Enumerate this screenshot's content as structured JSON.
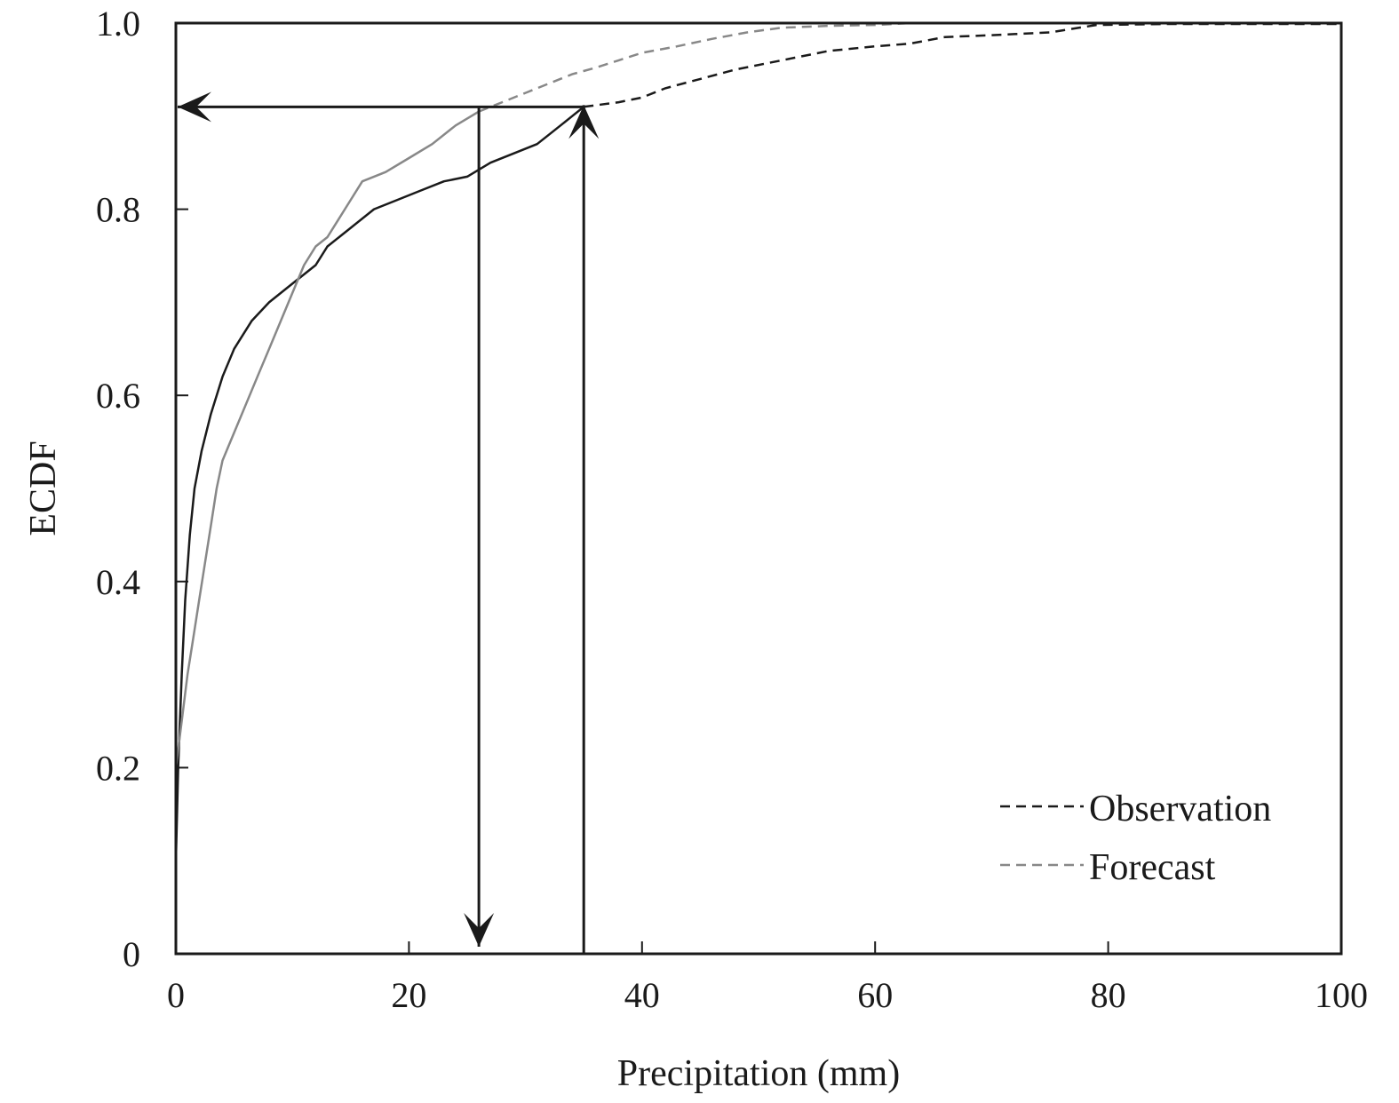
{
  "chart_data": {
    "type": "line",
    "title": "",
    "xlabel": "Precipitation (mm)",
    "ylabel": "ECDF",
    "xlim": [
      0,
      100
    ],
    "ylim": [
      0,
      1
    ],
    "x_ticks": [
      0,
      20,
      40,
      60,
      80,
      100
    ],
    "x_tick_labels": [
      "0",
      "20",
      "40",
      "60",
      "80",
      "100"
    ],
    "y_ticks": [
      0,
      0.2,
      0.4,
      0.6,
      0.8,
      1.0
    ],
    "y_tick_labels": [
      "0",
      "0.2",
      "0.4",
      "0.6",
      "0.8",
      "1.0"
    ],
    "grid": false,
    "legend_position": "bottom-right",
    "series": [
      {
        "name": "Observation",
        "color": "#1a1a1a",
        "solid_until_x": 35,
        "points": [
          [
            0,
            0.1
          ],
          [
            0.2,
            0.2
          ],
          [
            0.5,
            0.3
          ],
          [
            0.8,
            0.38
          ],
          [
            1.2,
            0.45
          ],
          [
            1.6,
            0.5
          ],
          [
            2.2,
            0.54
          ],
          [
            3,
            0.58
          ],
          [
            4,
            0.62
          ],
          [
            5,
            0.65
          ],
          [
            6.5,
            0.68
          ],
          [
            8,
            0.7
          ],
          [
            10,
            0.72
          ],
          [
            12,
            0.74
          ],
          [
            13,
            0.76
          ],
          [
            15,
            0.78
          ],
          [
            17,
            0.8
          ],
          [
            19,
            0.81
          ],
          [
            21,
            0.82
          ],
          [
            23,
            0.83
          ],
          [
            25,
            0.835
          ],
          [
            27,
            0.85
          ],
          [
            29,
            0.86
          ],
          [
            31,
            0.87
          ],
          [
            32,
            0.88
          ],
          [
            33,
            0.89
          ],
          [
            34,
            0.9
          ],
          [
            35,
            0.91
          ],
          [
            38,
            0.915
          ],
          [
            40,
            0.92
          ],
          [
            42,
            0.93
          ],
          [
            45,
            0.94
          ],
          [
            48,
            0.95
          ],
          [
            52,
            0.96
          ],
          [
            56,
            0.97
          ],
          [
            60,
            0.975
          ],
          [
            63,
            0.978
          ],
          [
            66,
            0.985
          ],
          [
            70,
            0.987
          ],
          [
            75,
            0.99
          ],
          [
            79,
            0.998
          ],
          [
            85,
            0.999
          ],
          [
            100,
            0.999
          ]
        ]
      },
      {
        "name": "Forecast",
        "color": "#888888",
        "solid_until_x": 26,
        "points": [
          [
            0,
            0.2
          ],
          [
            0.5,
            0.25
          ],
          [
            1,
            0.3
          ],
          [
            1.5,
            0.34
          ],
          [
            2,
            0.38
          ],
          [
            2.5,
            0.42
          ],
          [
            3,
            0.46
          ],
          [
            3.5,
            0.5
          ],
          [
            4,
            0.53
          ],
          [
            5,
            0.56
          ],
          [
            6,
            0.59
          ],
          [
            7,
            0.62
          ],
          [
            8,
            0.65
          ],
          [
            9,
            0.68
          ],
          [
            10,
            0.71
          ],
          [
            11,
            0.74
          ],
          [
            12,
            0.76
          ],
          [
            13,
            0.77
          ],
          [
            14,
            0.79
          ],
          [
            15,
            0.81
          ],
          [
            16,
            0.83
          ],
          [
            18,
            0.84
          ],
          [
            20,
            0.855
          ],
          [
            22,
            0.87
          ],
          [
            24,
            0.89
          ],
          [
            26,
            0.905
          ],
          [
            28,
            0.915
          ],
          [
            30,
            0.925
          ],
          [
            32,
            0.935
          ],
          [
            34,
            0.945
          ],
          [
            36,
            0.952
          ],
          [
            38,
            0.96
          ],
          [
            40,
            0.968
          ],
          [
            43,
            0.975
          ],
          [
            46,
            0.983
          ],
          [
            49,
            0.99
          ],
          [
            52,
            0.995
          ],
          [
            56,
            0.997
          ],
          [
            60,
            0.998
          ],
          [
            63,
            1.0
          ]
        ]
      }
    ],
    "annotations": [
      {
        "type": "arrow-down",
        "x": 26,
        "y_from": 0.91,
        "y_to": 0
      },
      {
        "type": "arrow-up",
        "x": 35,
        "y_from": 0,
        "y_to": 0.91
      },
      {
        "type": "arrow-left",
        "y": 0.91,
        "x_from": 35,
        "x_to": 0
      }
    ]
  }
}
